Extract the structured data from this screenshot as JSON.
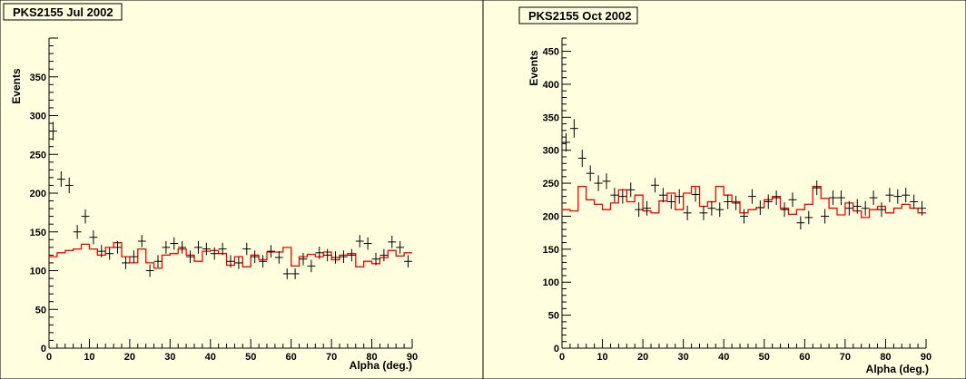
{
  "charts": [
    {
      "title": "PKS2155 Jul 2002",
      "xlabel": "Alpha (deg.)",
      "ylabel": "Events",
      "xlim": [
        0,
        90
      ],
      "ylim": [
        0,
        400
      ],
      "xticks": [
        0,
        10,
        20,
        30,
        40,
        50,
        60,
        70,
        80,
        90
      ],
      "yticks": [
        0,
        50,
        100,
        150,
        200,
        250,
        300,
        350
      ],
      "colors": {
        "background": "#ffffe0",
        "data_points": "#000000",
        "off_histogram": "#ff0000"
      }
    },
    {
      "title": "PKS2155 Oct 2002",
      "xlabel": "Alpha (deg.)",
      "ylabel": "Events",
      "xlim": [
        0,
        90
      ],
      "ylim": [
        0,
        470
      ],
      "xticks": [
        0,
        10,
        20,
        30,
        40,
        50,
        60,
        70,
        80,
        90
      ],
      "yticks": [
        0,
        50,
        100,
        150,
        200,
        250,
        300,
        350,
        400,
        450
      ],
      "colors": {
        "background": "#ffffe0",
        "data_points": "#000000",
        "off_histogram": "#ff0000"
      }
    }
  ],
  "chart_data": [
    {
      "type": "scatter",
      "title": "PKS2155 Jul 2002",
      "xlabel": "Alpha (deg.)",
      "ylabel": "Events",
      "xlim": [
        0,
        90
      ],
      "ylim": [
        0,
        400
      ],
      "bin_width": 2,
      "x": [
        1,
        3,
        5,
        7,
        9,
        11,
        13,
        15,
        17,
        19,
        21,
        23,
        25,
        27,
        29,
        31,
        33,
        35,
        37,
        39,
        41,
        43,
        45,
        47,
        49,
        51,
        53,
        55,
        57,
        59,
        61,
        63,
        65,
        67,
        69,
        71,
        73,
        75,
        77,
        79,
        81,
        83,
        85,
        87,
        89
      ],
      "series": [
        {
          "values": [
            280,
            218,
            210,
            150,
            170,
            143,
            125,
            122,
            130,
            110,
            118,
            138,
            100,
            112,
            130,
            135,
            130,
            118,
            130,
            128,
            122,
            128,
            112,
            110,
            128,
            118,
            112,
            125,
            117,
            96,
            96,
            115,
            106,
            123,
            120,
            117,
            118,
            120,
            138,
            135,
            115,
            120,
            137,
            130,
            112
          ],
          "errors": [
            12,
            10,
            10,
            9,
            9,
            9,
            8,
            8,
            8,
            8,
            8,
            8,
            8,
            8,
            8,
            8,
            8,
            8,
            8,
            8,
            8,
            8,
            8,
            8,
            8,
            8,
            8,
            8,
            8,
            7,
            7,
            8,
            8,
            8,
            8,
            8,
            8,
            8,
            8,
            8,
            8,
            8,
            8,
            8,
            8
          ]
        },
        {
          "type": "step",
          "values": [
            118,
            123,
            126,
            128,
            134,
            128,
            120,
            130,
            136,
            118,
            110,
            128,
            110,
            103,
            120,
            122,
            128,
            120,
            112,
            125,
            126,
            122,
            107,
            118,
            105,
            120,
            114,
            124,
            124,
            130,
            106,
            118,
            121,
            118,
            124,
            114,
            120,
            122,
            105,
            112,
            109,
            117,
            126,
            119,
            123
          ]
        }
      ]
    },
    {
      "type": "scatter",
      "title": "PKS2155 Oct 2002",
      "xlabel": "Alpha (deg.)",
      "ylabel": "Events",
      "xlim": [
        0,
        90
      ],
      "ylim": [
        0,
        470
      ],
      "bin_width": 2,
      "x": [
        1,
        3,
        5,
        7,
        9,
        11,
        13,
        15,
        17,
        19,
        21,
        23,
        25,
        27,
        29,
        31,
        33,
        35,
        37,
        39,
        41,
        43,
        45,
        47,
        49,
        51,
        53,
        55,
        57,
        59,
        61,
        63,
        65,
        67,
        69,
        71,
        73,
        75,
        77,
        79,
        81,
        83,
        85,
        87,
        89
      ],
      "series": [
        {
          "values": [
            312,
            333,
            288,
            265,
            250,
            253,
            232,
            230,
            240,
            210,
            212,
            247,
            232,
            222,
            230,
            205,
            233,
            205,
            212,
            210,
            222,
            220,
            200,
            230,
            213,
            222,
            228,
            210,
            225,
            190,
            198,
            243,
            200,
            228,
            228,
            212,
            215,
            212,
            228,
            210,
            232,
            230,
            232,
            222,
            212
          ],
          "errors": [
            14,
            14,
            13,
            12,
            12,
            12,
            11,
            11,
            11,
            11,
            11,
            11,
            11,
            11,
            11,
            11,
            11,
            11,
            11,
            11,
            11,
            11,
            11,
            11,
            11,
            11,
            11,
            11,
            11,
            10,
            10,
            11,
            11,
            11,
            11,
            11,
            11,
            11,
            11,
            11,
            11,
            11,
            11,
            11,
            11
          ]
        },
        {
          "type": "step",
          "values": [
            210,
            208,
            245,
            225,
            218,
            210,
            220,
            240,
            222,
            232,
            208,
            205,
            223,
            235,
            210,
            235,
            245,
            215,
            222,
            245,
            232,
            222,
            205,
            210,
            213,
            225,
            230,
            212,
            203,
            210,
            218,
            245,
            227,
            212,
            202,
            220,
            208,
            198,
            210,
            215,
            205,
            212,
            218,
            212,
            205
          ]
        }
      ]
    }
  ]
}
